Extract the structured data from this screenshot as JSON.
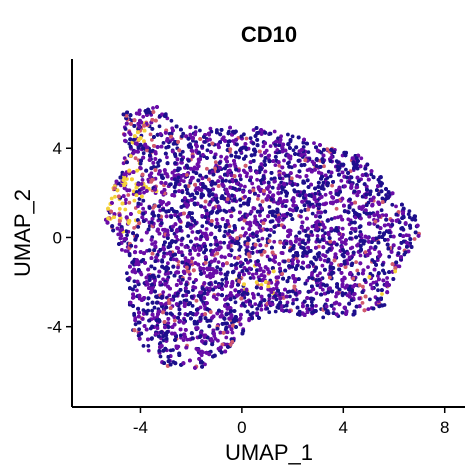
{
  "chart_data": {
    "type": "scatter",
    "title": "CD10",
    "xlabel": "UMAP_1",
    "ylabel": "UMAP_2",
    "xlim": [
      -6.7,
      8.8
    ],
    "ylim": [
      -7.6,
      8.0
    ],
    "x_ticks": [
      -4,
      0,
      4,
      8
    ],
    "x_tick_labels": [
      "-4",
      "0",
      "4",
      "8"
    ],
    "y_ticks": [
      -4,
      0,
      4
    ],
    "y_tick_labels": [
      "-4",
      "0",
      "4"
    ],
    "grid": false,
    "legend": "none",
    "color_scale": {
      "name": "plasma",
      "low": "#1d0f8c",
      "mid_low": "#6a0da8",
      "mid_high": "#d05a6e",
      "high": "#f3d03a"
    },
    "point_count_estimate": 9000,
    "cluster_outline": [
      [
        -4.7,
        5.6
      ],
      [
        -3.3,
        5.9
      ],
      [
        -2.5,
        5.0
      ],
      [
        -1.2,
        4.9
      ],
      [
        0.3,
        5.0
      ],
      [
        2.0,
        4.6
      ],
      [
        3.3,
        4.1
      ],
      [
        4.6,
        3.7
      ],
      [
        5.6,
        2.6
      ],
      [
        6.2,
        1.7
      ],
      [
        6.9,
        0.9
      ],
      [
        7.0,
        0.0
      ],
      [
        6.3,
        -1.1
      ],
      [
        6.0,
        -1.9
      ],
      [
        5.6,
        -3.1
      ],
      [
        4.4,
        -3.5
      ],
      [
        3.0,
        -3.6
      ],
      [
        1.2,
        -3.3
      ],
      [
        0.3,
        -4.1
      ],
      [
        -0.5,
        -5.0
      ],
      [
        -1.5,
        -5.8
      ],
      [
        -2.2,
        -6.0
      ],
      [
        -3.0,
        -5.8
      ],
      [
        -3.8,
        -5.0
      ],
      [
        -4.3,
        -4.2
      ],
      [
        -4.4,
        -3.3
      ],
      [
        -4.5,
        -2.2
      ],
      [
        -4.6,
        -1.0
      ],
      [
        -5.4,
        0.6
      ],
      [
        -5.1,
        2.3
      ],
      [
        -4.6,
        3.7
      ],
      [
        -4.7,
        5.0
      ]
    ],
    "hotspots": [
      {
        "x": -4.3,
        "y": 2.3,
        "level": "high"
      },
      {
        "x": -4.8,
        "y": 1.4,
        "level": "high"
      },
      {
        "x": -3.7,
        "y": 4.6,
        "level": "mid"
      },
      {
        "x": 5.8,
        "y": -1.9,
        "level": "mid"
      },
      {
        "x": 0.5,
        "y": -1.8,
        "level": "mid"
      }
    ]
  }
}
